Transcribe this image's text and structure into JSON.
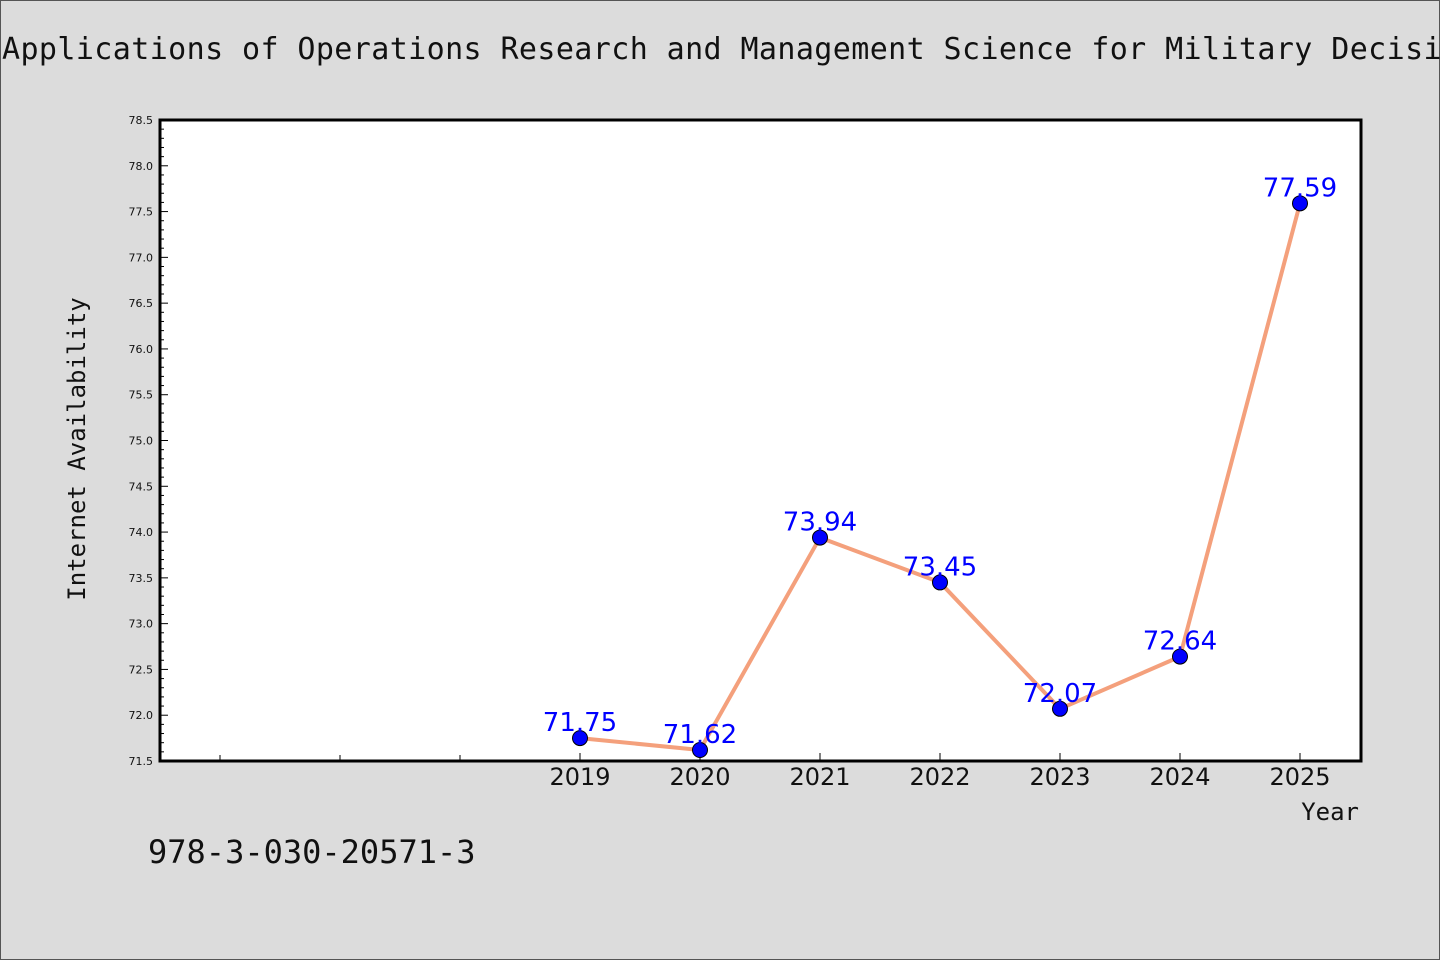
{
  "page": {
    "title": "Applications of Operations Research and Management Science for Military Decision",
    "isbn": "978-3-030-20571-3"
  },
  "colors": {
    "background": "#dcdcdc",
    "plot_background": "#ffffff",
    "line": "#f4a07c",
    "marker": "#0000ff",
    "data_label": "#0000ff"
  },
  "chart_data": {
    "type": "line",
    "title": "Applications of Operations Research and Management Science for Military Decision",
    "xlabel": "Year",
    "ylabel": "Internet Availability",
    "categories": [
      "2019",
      "2020",
      "2021",
      "2022",
      "2023",
      "2024",
      "2025"
    ],
    "series": [
      {
        "values": [
          71.75,
          71.62,
          73.94,
          73.45,
          72.07,
          72.64,
          77.59
        ]
      }
    ],
    "data_labels": [
      "71.75",
      "71.62",
      "73.94",
      "73.45",
      "72.07",
      "72.64",
      "77.59"
    ],
    "ylim": [
      71.5,
      78.5
    ],
    "yticks": [
      "71.5",
      "72.0",
      "72.5",
      "73.0",
      "73.5",
      "74.0",
      "74.5",
      "75.0",
      "75.5",
      "76.0",
      "76.5",
      "77.0",
      "77.5",
      "78.0",
      "78.5"
    ],
    "grid": false,
    "legend": "none"
  }
}
